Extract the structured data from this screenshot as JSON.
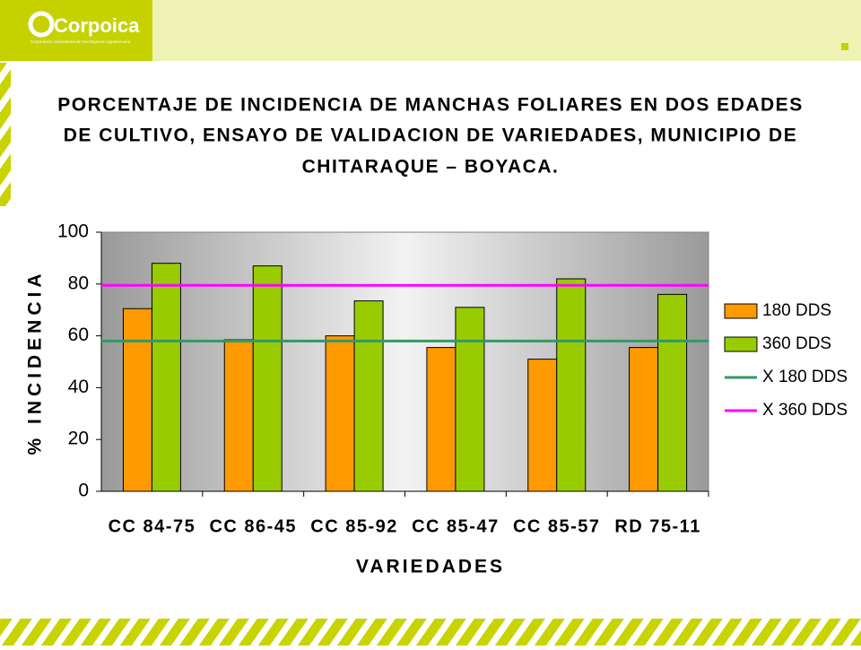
{
  "logo": {
    "name": "Corpoica",
    "tagline": "Corporación Colombiana de Investigación Agropecuaria"
  },
  "chart_data": {
    "type": "bar",
    "title": [
      "PORCENTAJE DE INCIDENCIA DE MANCHAS FOLIARES EN DOS EDADES",
      "DE CULTIVO, ENSAYO DE VALIDACION DE VARIEDADES, MUNICIPIO DE",
      "CHITARAQUE – BOYACA."
    ],
    "x_label": "VARIEDADES",
    "y_label": "% INCIDENCIA",
    "categories": [
      "CC 84-75",
      "CC 86-45",
      "CC 85-92",
      "CC 85-47",
      "CC 85-57",
      "RD 75-11"
    ],
    "series": [
      {
        "name": "180 DDS",
        "color": "#ff9900",
        "values": [
          70.5,
          58.5,
          60,
          55.5,
          51,
          55.5
        ]
      },
      {
        "name": "360 DDS",
        "color": "#99cc00",
        "values": [
          88,
          87,
          73.5,
          71,
          82,
          76
        ]
      }
    ],
    "reference_lines": [
      {
        "name": "X 180 DDS",
        "color": "#339966",
        "value": 58
      },
      {
        "name": "X 360 DDS",
        "color": "#ff00ff",
        "value": 79.5
      }
    ],
    "ylim": [
      0,
      100
    ],
    "yticks": [
      0,
      20,
      40,
      60,
      80,
      100
    ],
    "grid": false,
    "legend": "right"
  }
}
